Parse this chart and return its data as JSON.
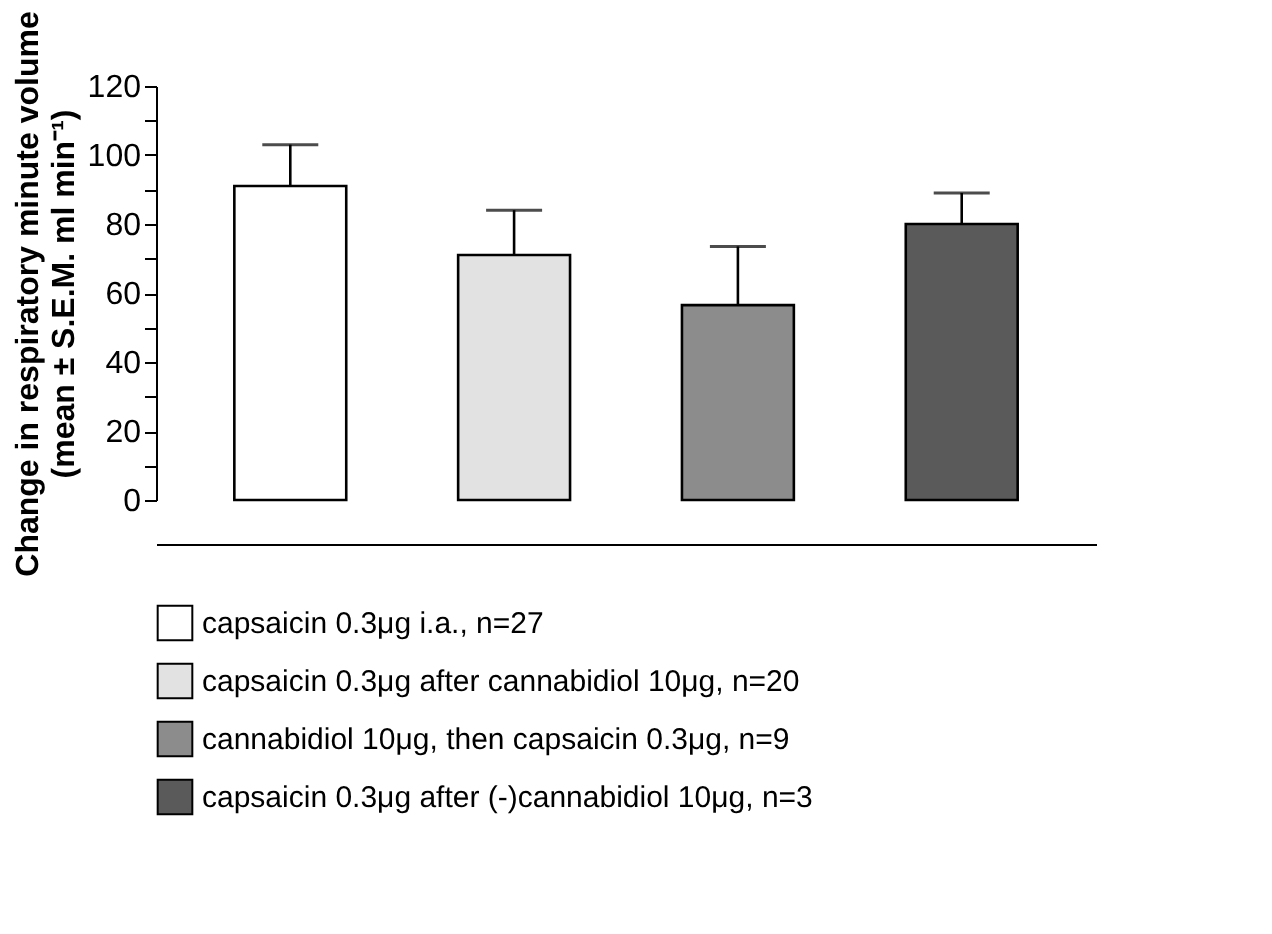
{
  "chart_data": {
    "type": "bar",
    "ylabel": "Change in respiratory minute volume\n(mean ± S.E.M. ml min⁻¹)",
    "categories": [
      null,
      null,
      null,
      null
    ],
    "series": [
      {
        "name": "capsaicin 0.3μg i.a., n=27",
        "color": "#ffffff",
        "values": [
          91,
          null,
          null,
          null
        ],
        "errors": [
          12,
          null,
          null,
          null
        ]
      },
      {
        "name": "capsaicin 0.3μg after cannabidiol 10μg, n=20",
        "color": "#e2e2e2",
        "values": [
          null,
          71,
          null,
          null
        ],
        "errors": [
          null,
          13,
          null,
          null
        ]
      },
      {
        "name": "cannabidiol 10μg, then capsaicin 0.3μg, n=9",
        "color": "#8c8c8c",
        "values": [
          null,
          null,
          56.5,
          null
        ],
        "errors": [
          null,
          null,
          17,
          null
        ]
      },
      {
        "name": "capsaicin 0.3μg after (-)cannabidiol 10μg, n=3",
        "color": "#5a5a5a",
        "values": [
          null,
          null,
          null,
          80
        ],
        "errors": [
          null,
          null,
          null,
          9
        ]
      }
    ],
    "stacked": true,
    "ylim": [
      0,
      120
    ],
    "yticks": [
      0,
      {
        "value": 10,
        "label": null
      },
      20,
      {
        "value": 30,
        "label": null
      },
      40,
      {
        "value": 50,
        "label": null
      },
      60,
      {
        "value": 70,
        "label": null
      },
      80,
      {
        "value": 90,
        "label": null
      },
      100,
      {
        "value": 110,
        "label": null
      },
      120
    ],
    "tick_labels": "y",
    "grid": false,
    "legend": "bottom"
  }
}
